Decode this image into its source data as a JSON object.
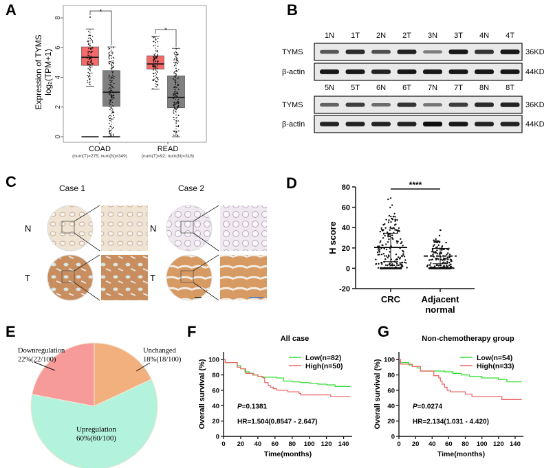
{
  "panels": {
    "A": "A",
    "B": "B",
    "C": "C",
    "D": "D",
    "E": "E",
    "F": "F",
    "G": "G"
  },
  "chart_data": [
    {
      "id": "A",
      "type": "box",
      "title": "",
      "ylabel_line1": "Expression of TYMS",
      "ylabel_line2": "log₂(TPM+1)",
      "ylim": [
        0,
        8.7
      ],
      "yticks": [
        0,
        2,
        4,
        6,
        8
      ],
      "groups": [
        {
          "name": "COAD",
          "subtitle": "(num(T)=275; num(N)=349)",
          "significance": "*",
          "tumor": {
            "color": "#f36a6a",
            "min": 3.4,
            "q1": 4.8,
            "median": 5.35,
            "q3": 6.05,
            "max": 7.25,
            "outlier_top": 8.05,
            "zero_line": 0
          },
          "normal": {
            "color": "#808080",
            "min": 0,
            "q1": 2.05,
            "median": 3.0,
            "q3": 4.45,
            "max": 6.05,
            "zero_line": 0
          }
        },
        {
          "name": "READ",
          "subtitle": "(num(T)=92; num(N)=318)",
          "significance": "*",
          "tumor": {
            "color": "#f36a6a",
            "min": 3.2,
            "q1": 4.55,
            "median": 4.9,
            "q3": 5.45,
            "max": 6.75
          },
          "normal": {
            "color": "#808080",
            "min": 0,
            "q1": 1.95,
            "median": 2.65,
            "q3": 4.1,
            "max": 5.95
          }
        }
      ]
    },
    {
      "id": "B",
      "type": "western-blot",
      "rows": [
        {
          "lanes": [
            "1N",
            "1T",
            "2N",
            "2T",
            "3N",
            "3T",
            "4N",
            "4T"
          ],
          "blots": [
            {
              "label": "TYMS",
              "size": "36KD",
              "intensity": [
                0.6,
                0.85,
                0.65,
                0.9,
                0.4,
                0.95,
                0.8,
                0.95
              ]
            },
            {
              "label": "β-actin",
              "size": "44KD",
              "intensity": [
                0.95,
                0.95,
                0.9,
                0.95,
                0.95,
                0.95,
                0.95,
                0.95
              ]
            }
          ]
        },
        {
          "lanes": [
            "5N",
            "5T",
            "6N",
            "6T",
            "7N",
            "7T",
            "8N",
            "8T"
          ],
          "blots": [
            {
              "label": "TYMS",
              "size": "36KD",
              "intensity": [
                0.55,
                0.75,
                0.5,
                0.8,
                0.45,
                0.75,
                0.85,
                0.9
              ]
            },
            {
              "label": "β-actin",
              "size": "44KD",
              "intensity": [
                0.9,
                0.9,
                0.9,
                0.9,
                1.0,
                0.95,
                0.9,
                0.9
              ]
            }
          ]
        }
      ]
    },
    {
      "id": "C",
      "type": "ihc-images",
      "cases": [
        "Case 1",
        "Case 2"
      ],
      "rows": [
        "N",
        "T"
      ]
    },
    {
      "id": "D",
      "type": "scatter",
      "ylabel": "H score",
      "ylim": [
        -20,
        80
      ],
      "yticks": [
        -20,
        0,
        20,
        40,
        60,
        80
      ],
      "categories": [
        "CRC",
        "Adjacent normal"
      ],
      "significance": "****",
      "series": [
        {
          "name": "CRC",
          "mean": 20.5,
          "sd_upper": 34.5,
          "sd_lower": 6.5,
          "max": 69
        },
        {
          "name": "Adjacent normal",
          "mean": 12,
          "sd_upper": 19.5,
          "sd_lower": 4.5,
          "max": 37.5
        }
      ]
    },
    {
      "id": "E",
      "type": "pie",
      "slices": [
        {
          "label": "Unchanged",
          "value": 18,
          "text": "18%(18/100)",
          "color": "#f2b07e"
        },
        {
          "label": "Upregulation",
          "value": 60,
          "text": "60%(60/100)",
          "color": "#b3f2dc"
        },
        {
          "label": "Downregulation",
          "value": 22,
          "text": "22%(22/100)",
          "color": "#f79a9a"
        }
      ]
    },
    {
      "id": "F",
      "type": "line",
      "title": "All case",
      "xlabel": "Time(months)",
      "ylabel": "Overall survival (%)",
      "xlim": [
        0,
        150
      ],
      "ylim": [
        0,
        110
      ],
      "xticks": [
        0,
        20,
        40,
        60,
        80,
        100,
        120,
        140
      ],
      "yticks": [
        0,
        20,
        40,
        60,
        80,
        100
      ],
      "p_prefix": "P",
      "p_value": "=0.1381",
      "hr": "HR=1.504(0.8547 - 2.647)",
      "series": [
        {
          "name": "Low(n=82)",
          "color": "#33dd33",
          "x": [
            0,
            2,
            12,
            16,
            20,
            25,
            30,
            35,
            40,
            45,
            55,
            62,
            70,
            80,
            90,
            100,
            110,
            120,
            130,
            148
          ],
          "y": [
            100,
            96,
            96,
            92,
            88,
            84,
            82,
            80,
            78,
            77,
            77,
            76,
            72,
            71,
            70,
            69,
            68,
            67,
            65,
            65
          ]
        },
        {
          "name": "High(n=50)",
          "color": "#ee6666",
          "x": [
            0,
            2,
            14,
            16,
            20,
            26,
            34,
            40,
            46,
            48,
            52,
            55,
            58,
            62,
            75,
            88,
            90,
            110,
            125,
            148
          ],
          "y": [
            100,
            96,
            96,
            90,
            88,
            82,
            80,
            78,
            76,
            70,
            66,
            64,
            62,
            60,
            58,
            56,
            54,
            54,
            52,
            52
          ]
        }
      ]
    },
    {
      "id": "G",
      "type": "line",
      "title": "Non-chemotherapy group",
      "xlabel": "Time(months)",
      "ylabel": "Overall survival (%)",
      "xlim": [
        0,
        150
      ],
      "ylim": [
        0,
        110
      ],
      "xticks": [
        0,
        20,
        40,
        60,
        80,
        100,
        120,
        140
      ],
      "yticks": [
        0,
        20,
        40,
        60,
        80,
        100
      ],
      "p_prefix": "P",
      "p_value": "=0.0274",
      "hr": "HR=2.134(1.031 - 4.420)",
      "series": [
        {
          "name": "Low(n=54)",
          "color": "#33dd33",
          "x": [
            0,
            2,
            12,
            16,
            22,
            26,
            40,
            55,
            65,
            75,
            85,
            100,
            120,
            130,
            148
          ],
          "y": [
            100,
            96,
            93,
            91,
            89,
            85,
            85,
            84,
            82,
            80,
            78,
            76,
            74,
            71,
            71
          ],
          "note": ""
        },
        {
          "name": "High(n=33)",
          "color": "#ee6666",
          "x": [
            0,
            2,
            14,
            16,
            26,
            40,
            42,
            48,
            50,
            52,
            55,
            58,
            62,
            80,
            88,
            105,
            124,
            148
          ],
          "y": [
            100,
            94,
            94,
            91,
            85,
            85,
            79,
            76,
            72,
            68,
            64,
            60,
            58,
            55,
            52,
            52,
            48,
            48
          ]
        }
      ]
    }
  ]
}
